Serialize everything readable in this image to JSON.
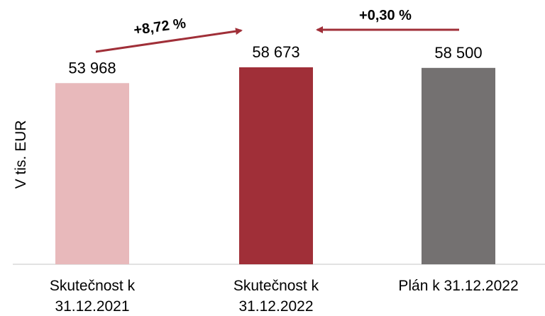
{
  "chart_data": {
    "type": "bar",
    "ylabel": "V tis. EUR",
    "categories": [
      [
        "Skutečnost k",
        "31.12.2021"
      ],
      [
        "Skutečnost k",
        "31.12.2022"
      ],
      [
        "Plán k 31.12.2022"
      ]
    ],
    "values": [
      53968,
      58673,
      58500
    ],
    "value_labels": [
      "53 968",
      "58 673",
      "58 500"
    ],
    "bar_colors": [
      "#e8b9bb",
      "#a02f38",
      "#747171"
    ],
    "ylim": [
      0,
      58673
    ],
    "grid": false,
    "annotations": [
      {
        "text": "+8,72 %",
        "from": 0,
        "to": 1,
        "color": "#a02f38"
      },
      {
        "text": "+0,30 %",
        "from": 2,
        "to": 1,
        "color": "#a02f38"
      }
    ]
  }
}
